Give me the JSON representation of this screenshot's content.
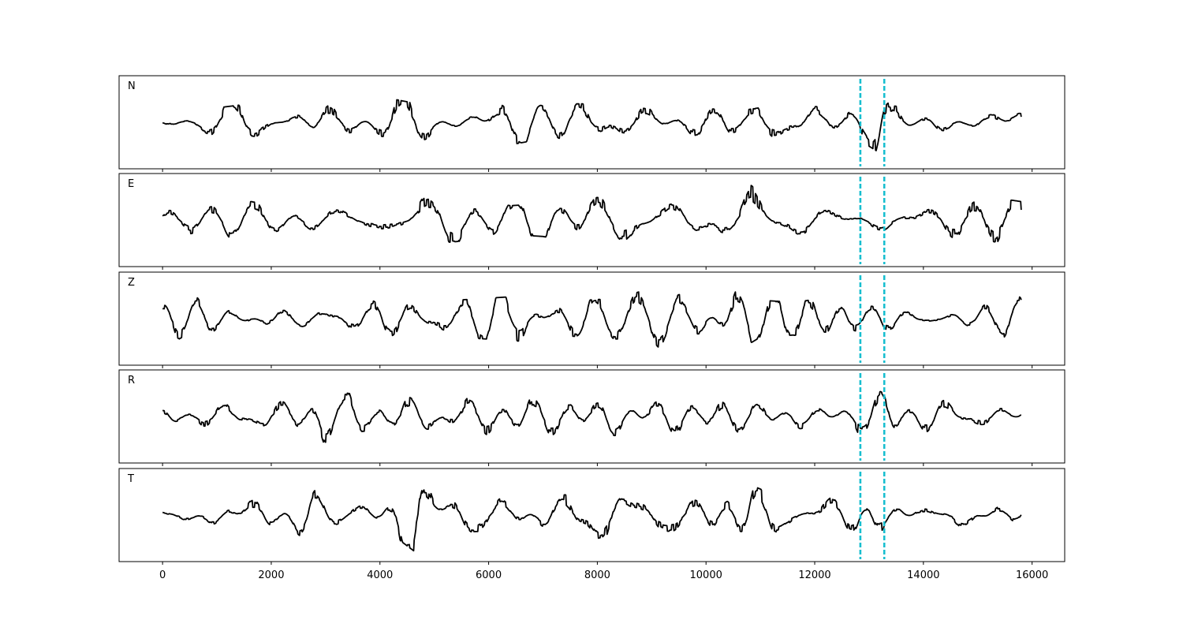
{
  "chart_data": {
    "type": "line",
    "layout": "stacked",
    "x_ticks": [
      0,
      2000,
      4000,
      6000,
      8000,
      10000,
      12000,
      14000,
      16000
    ],
    "xlim": [
      -800,
      16600
    ],
    "sample_count": 15800,
    "ylabel": "",
    "xlabel": "",
    "title": "",
    "grid": false,
    "colors": {
      "trace": "#000000",
      "marker": "#17becf",
      "frame": "#000000"
    },
    "markers": {
      "style": "dashed",
      "x": [
        12840,
        13280
      ]
    },
    "panels": [
      {
        "label": "N",
        "envelope": [
          [
            0,
            0.25
          ],
          [
            100,
            0.5
          ],
          [
            600,
            0.25
          ],
          [
            1000,
            0.35
          ],
          [
            1600,
            0.45
          ],
          [
            2000,
            0.35
          ],
          [
            2400,
            0.6
          ],
          [
            2700,
            0.85
          ],
          [
            2900,
            1.0
          ],
          [
            3200,
            0.6
          ],
          [
            3600,
            0.4
          ],
          [
            4000,
            0.35
          ],
          [
            4300,
            0.55
          ],
          [
            4700,
            0.45
          ],
          [
            5200,
            0.35
          ],
          [
            5800,
            0.45
          ],
          [
            6400,
            0.55
          ],
          [
            7000,
            0.4
          ],
          [
            7600,
            0.45
          ],
          [
            8200,
            0.45
          ],
          [
            8800,
            0.35
          ],
          [
            9300,
            0.25
          ],
          [
            10000,
            0.35
          ],
          [
            10500,
            0.25
          ],
          [
            11200,
            0.4
          ],
          [
            12000,
            0.45
          ],
          [
            12500,
            0.4
          ],
          [
            12900,
            0.5
          ],
          [
            13200,
            0.75
          ],
          [
            13400,
            0.4
          ],
          [
            14000,
            0.35
          ],
          [
            14600,
            0.55
          ],
          [
            15200,
            0.4
          ],
          [
            15800,
            0.4
          ]
        ]
      },
      {
        "label": "E",
        "envelope": [
          [
            0,
            0.3
          ],
          [
            600,
            0.35
          ],
          [
            1200,
            0.45
          ],
          [
            2000,
            0.45
          ],
          [
            2700,
            0.55
          ],
          [
            3500,
            0.45
          ],
          [
            4000,
            0.55
          ],
          [
            4700,
            0.65
          ],
          [
            5200,
            0.55
          ],
          [
            6000,
            0.45
          ],
          [
            6400,
            0.35
          ],
          [
            7000,
            0.4
          ],
          [
            7600,
            0.55
          ],
          [
            8200,
            0.55
          ],
          [
            8800,
            0.45
          ],
          [
            9400,
            0.5
          ],
          [
            10000,
            0.5
          ],
          [
            10500,
            0.55
          ],
          [
            10800,
            0.9
          ],
          [
            11200,
            0.55
          ],
          [
            11800,
            0.5
          ],
          [
            12400,
            0.45
          ],
          [
            13000,
            0.4
          ],
          [
            13600,
            0.45
          ],
          [
            14200,
            0.35
          ],
          [
            14800,
            0.5
          ],
          [
            15300,
            0.55
          ],
          [
            15800,
            0.45
          ]
        ]
      },
      {
        "label": "Z",
        "envelope": [
          [
            0,
            0.3
          ],
          [
            400,
            0.55
          ],
          [
            800,
            0.6
          ],
          [
            1200,
            0.45
          ],
          [
            1600,
            0.55
          ],
          [
            2400,
            0.45
          ],
          [
            3000,
            0.5
          ],
          [
            3600,
            0.4
          ],
          [
            4300,
            0.5
          ],
          [
            4800,
            0.5
          ],
          [
            5400,
            0.45
          ],
          [
            6000,
            0.5
          ],
          [
            6600,
            0.55
          ],
          [
            7200,
            0.4
          ],
          [
            7800,
            0.45
          ],
          [
            8400,
            0.5
          ],
          [
            9000,
            0.75
          ],
          [
            9600,
            0.6
          ],
          [
            10200,
            0.8
          ],
          [
            10500,
            0.85
          ],
          [
            11000,
            0.45
          ],
          [
            11600,
            0.4
          ],
          [
            12200,
            0.5
          ],
          [
            12800,
            0.5
          ],
          [
            13300,
            0.55
          ],
          [
            13800,
            0.45
          ],
          [
            14400,
            0.45
          ],
          [
            15000,
            0.5
          ],
          [
            15600,
            0.7
          ],
          [
            15800,
            0.55
          ]
        ]
      },
      {
        "label": "R",
        "envelope": [
          [
            0,
            0.2
          ],
          [
            100,
            0.35
          ],
          [
            600,
            0.35
          ],
          [
            1200,
            0.45
          ],
          [
            2000,
            0.45
          ],
          [
            2700,
            0.75
          ],
          [
            2900,
            1.0
          ],
          [
            3200,
            0.6
          ],
          [
            3800,
            0.5
          ],
          [
            4200,
            0.6
          ],
          [
            4800,
            0.55
          ],
          [
            5400,
            0.5
          ],
          [
            6000,
            0.5
          ],
          [
            6600,
            0.45
          ],
          [
            7200,
            0.45
          ],
          [
            7800,
            0.5
          ],
          [
            8200,
            0.6
          ],
          [
            8800,
            0.5
          ],
          [
            9400,
            0.45
          ],
          [
            10000,
            0.4
          ],
          [
            10600,
            0.4
          ],
          [
            11200,
            0.4
          ],
          [
            12000,
            0.4
          ],
          [
            12600,
            0.3
          ],
          [
            12900,
            0.5
          ],
          [
            13300,
            0.9
          ],
          [
            13700,
            0.5
          ],
          [
            14300,
            0.5
          ],
          [
            15000,
            0.45
          ],
          [
            15800,
            0.45
          ]
        ]
      },
      {
        "label": "T",
        "envelope": [
          [
            0,
            0.25
          ],
          [
            600,
            0.3
          ],
          [
            1200,
            0.45
          ],
          [
            2000,
            0.35
          ],
          [
            2400,
            0.5
          ],
          [
            2700,
            0.95
          ],
          [
            3000,
            0.6
          ],
          [
            3600,
            0.35
          ],
          [
            4200,
            0.45
          ],
          [
            4700,
            0.95
          ],
          [
            5000,
            0.45
          ],
          [
            5800,
            0.4
          ],
          [
            6400,
            0.45
          ],
          [
            7200,
            0.45
          ],
          [
            7900,
            0.6
          ],
          [
            8400,
            0.45
          ],
          [
            9200,
            0.4
          ],
          [
            10000,
            0.45
          ],
          [
            10800,
            0.75
          ],
          [
            11400,
            0.4
          ],
          [
            12000,
            0.4
          ],
          [
            12600,
            0.45
          ],
          [
            13000,
            0.6
          ],
          [
            13400,
            0.4
          ],
          [
            14000,
            0.3
          ],
          [
            14800,
            0.55
          ],
          [
            15200,
            0.5
          ],
          [
            15600,
            0.45
          ],
          [
            15800,
            0.35
          ]
        ]
      }
    ]
  }
}
